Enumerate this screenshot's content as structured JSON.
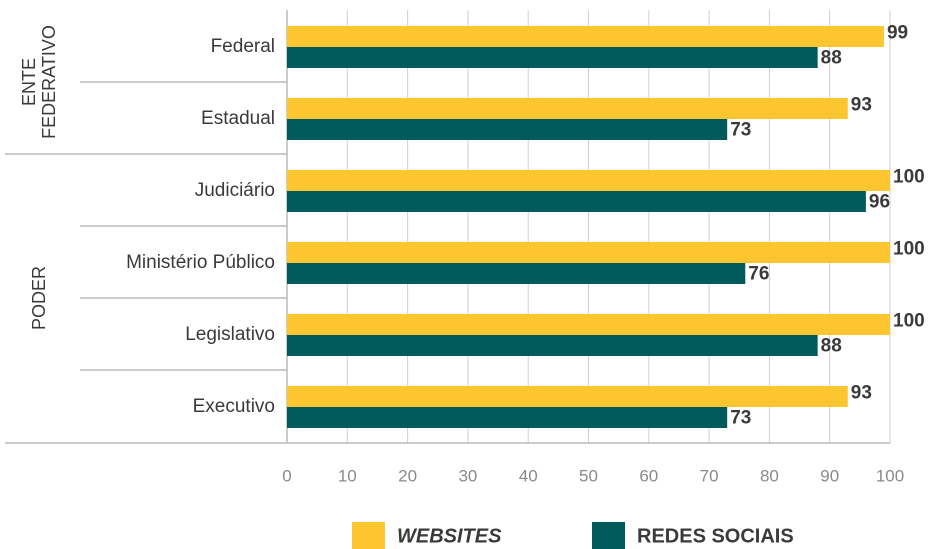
{
  "chart_data": {
    "type": "barh",
    "groups": [
      {
        "name": "ENTE FEDERATIVO",
        "categories": [
          "Federal",
          "Estadual"
        ]
      },
      {
        "name": "PODER",
        "categories": [
          "Judiciário",
          "Ministério Público",
          "Legislativo",
          "Executivo"
        ]
      }
    ],
    "series": [
      {
        "name": "WEBSITES",
        "color": "#fdc631",
        "values": [
          99,
          93,
          100,
          100,
          100,
          93
        ]
      },
      {
        "name": "REDES SOCIAIS",
        "color": "#005a5b",
        "values": [
          88,
          73,
          96,
          76,
          88,
          73
        ]
      }
    ],
    "xlim": [
      0,
      100
    ],
    "xticks": [
      0,
      10,
      20,
      30,
      40,
      50,
      60,
      70,
      80,
      90,
      100
    ],
    "grid": true
  }
}
